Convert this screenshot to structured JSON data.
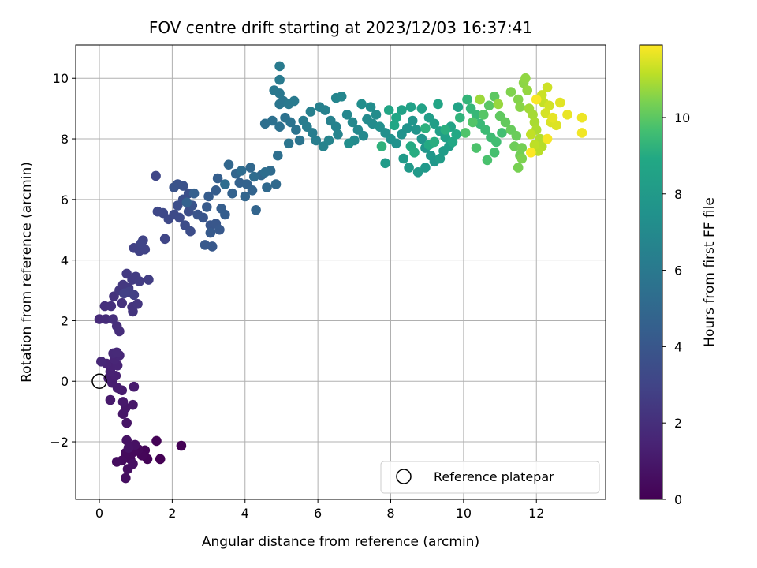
{
  "chart_data": {
    "type": "scatter",
    "title": "FOV centre drift starting at 2023/12/03 16:37:41",
    "xlabel": "Angular distance from reference (arcmin)",
    "ylabel": "Rotation from reference (arcmin)",
    "xlim": [
      -0.65,
      13.9
    ],
    "ylim": [
      -3.9,
      11.1
    ],
    "xticks": [
      0,
      2,
      4,
      6,
      8,
      10,
      12
    ],
    "yticks": [
      -2,
      0,
      2,
      4,
      6,
      8,
      10
    ],
    "ytick_labels": [
      "−2",
      "0",
      "2",
      "4",
      "6",
      "8",
      "10"
    ],
    "grid": true,
    "colormap": "viridis",
    "colorbar": {
      "label": "Hours from first FF file",
      "range": [
        0,
        11.9
      ],
      "ticks": [
        0,
        2,
        4,
        6,
        8,
        10
      ]
    },
    "legend": {
      "position": "lower-right",
      "entries": [
        "Reference platepar"
      ]
    },
    "reference_point": {
      "x": 0,
      "y": 0
    },
    "series": [
      {
        "value_keys": [
          "x",
          "y",
          "hours"
        ],
        "points": [
          [
            1.67,
            -2.57
          ],
          [
            2.25,
            -2.13
          ],
          [
            1.57,
            -1.97
          ],
          [
            1.32,
            -2.57
          ],
          [
            1.25,
            -2.28
          ],
          [
            1.17,
            -2.45
          ],
          [
            1.07,
            -2.25
          ],
          [
            0.95,
            -2.33
          ],
          [
            0.85,
            -2.57
          ],
          [
            0.72,
            -2.37
          ],
          [
            0.62,
            -2.62
          ],
          [
            0.48,
            -2.66
          ],
          [
            0.72,
            -3.2
          ],
          [
            0.78,
            -2.9
          ],
          [
            0.92,
            -2.73
          ],
          [
            0.98,
            -2.1
          ],
          [
            0.75,
            -1.95
          ],
          [
            0.8,
            -2.2
          ],
          [
            0.75,
            -1.38
          ],
          [
            0.65,
            -1.08
          ],
          [
            0.72,
            -0.88
          ],
          [
            0.92,
            -0.78
          ],
          [
            0.65,
            -0.68
          ],
          [
            0.3,
            -0.62
          ],
          [
            0.95,
            -0.18
          ],
          [
            0.62,
            -0.3
          ],
          [
            0.5,
            -0.22
          ],
          [
            0.35,
            -0.05
          ],
          [
            0.25,
            0.1
          ],
          [
            0.45,
            0.18
          ],
          [
            0.3,
            0.32
          ],
          [
            0.35,
            0.5
          ],
          [
            0.5,
            0.52
          ],
          [
            0.2,
            0.58
          ],
          [
            0.42,
            0.73
          ],
          [
            0.55,
            0.85
          ],
          [
            0.05,
            0.65
          ],
          [
            0.38,
            0.92
          ],
          [
            0.48,
            0.95
          ],
          [
            0.0,
            2.05
          ],
          [
            0.18,
            2.05
          ],
          [
            0.55,
            1.65
          ],
          [
            0.48,
            1.82
          ],
          [
            0.38,
            2.05
          ],
          [
            0.15,
            2.48
          ],
          [
            0.32,
            2.48
          ],
          [
            0.4,
            2.8
          ],
          [
            0.62,
            2.58
          ],
          [
            0.9,
            2.45
          ],
          [
            0.92,
            2.3
          ],
          [
            1.05,
            2.55
          ],
          [
            0.55,
            3.0
          ],
          [
            0.65,
            3.18
          ],
          [
            0.8,
            3.08
          ],
          [
            0.75,
            3.55
          ],
          [
            0.9,
            3.35
          ],
          [
            1.0,
            3.45
          ],
          [
            1.1,
            3.3
          ],
          [
            1.35,
            3.35
          ],
          [
            0.95,
            2.85
          ],
          [
            0.82,
            2.95
          ],
          [
            0.68,
            2.9
          ],
          [
            0.95,
            4.4
          ],
          [
            1.1,
            4.3
          ],
          [
            1.25,
            4.35
          ],
          [
            1.2,
            4.65
          ],
          [
            1.15,
            4.55
          ],
          [
            1.8,
            4.7
          ],
          [
            1.55,
            6.78
          ],
          [
            1.6,
            5.6
          ],
          [
            1.75,
            5.55
          ],
          [
            1.9,
            5.35
          ],
          [
            2.05,
            5.5
          ],
          [
            2.2,
            5.4
          ],
          [
            2.35,
            5.15
          ],
          [
            2.5,
            4.95
          ],
          [
            2.45,
            5.6
          ],
          [
            2.15,
            5.8
          ],
          [
            2.3,
            6.0
          ],
          [
            2.45,
            6.2
          ],
          [
            2.3,
            6.45
          ],
          [
            2.15,
            6.5
          ],
          [
            2.05,
            6.4
          ],
          [
            2.55,
            5.8
          ],
          [
            2.7,
            5.5
          ],
          [
            2.85,
            5.4
          ],
          [
            3.05,
            5.15
          ],
          [
            3.2,
            5.2
          ],
          [
            3.1,
            4.45
          ],
          [
            2.9,
            4.5
          ],
          [
            3.3,
            5.0
          ],
          [
            3.05,
            4.9
          ],
          [
            2.95,
            5.75
          ],
          [
            3.0,
            6.1
          ],
          [
            3.2,
            6.3
          ],
          [
            3.35,
            5.7
          ],
          [
            3.45,
            5.5
          ],
          [
            3.25,
            6.7
          ],
          [
            2.6,
            6.2
          ],
          [
            2.4,
            5.9
          ],
          [
            3.65,
            6.2
          ],
          [
            3.85,
            6.55
          ],
          [
            4.05,
            6.5
          ],
          [
            4.2,
            6.3
          ],
          [
            4.3,
            5.65
          ],
          [
            4.0,
            6.1
          ],
          [
            3.75,
            6.85
          ],
          [
            3.55,
            7.15
          ],
          [
            4.15,
            7.05
          ],
          [
            4.45,
            6.8
          ],
          [
            4.6,
            6.4
          ],
          [
            4.85,
            6.5
          ],
          [
            4.7,
            6.95
          ],
          [
            3.9,
            6.95
          ],
          [
            4.25,
            6.75
          ],
          [
            3.45,
            6.5
          ],
          [
            4.55,
            6.9
          ],
          [
            4.9,
            7.45
          ],
          [
            4.55,
            8.5
          ],
          [
            4.75,
            8.6
          ],
          [
            4.95,
            8.4
          ],
          [
            5.1,
            8.7
          ],
          [
            5.25,
            8.55
          ],
          [
            5.4,
            8.3
          ],
          [
            5.5,
            7.95
          ],
          [
            5.2,
            7.85
          ],
          [
            4.95,
            9.15
          ],
          [
            5.05,
            9.25
          ],
          [
            4.95,
            9.5
          ],
          [
            4.8,
            9.6
          ],
          [
            5.2,
            9.15
          ],
          [
            5.35,
            9.25
          ],
          [
            4.95,
            9.95
          ],
          [
            4.95,
            10.4
          ],
          [
            5.6,
            8.6
          ],
          [
            5.7,
            8.4
          ],
          [
            5.85,
            8.2
          ],
          [
            5.95,
            7.95
          ],
          [
            5.8,
            8.9
          ],
          [
            6.05,
            9.05
          ],
          [
            6.2,
            8.95
          ],
          [
            6.35,
            8.6
          ],
          [
            6.5,
            8.4
          ],
          [
            6.15,
            7.75
          ],
          [
            6.3,
            7.95
          ],
          [
            6.55,
            8.15
          ],
          [
            6.5,
            9.35
          ],
          [
            6.65,
            9.4
          ],
          [
            6.8,
            8.8
          ],
          [
            6.95,
            8.55
          ],
          [
            7.1,
            8.3
          ],
          [
            7.25,
            8.1
          ],
          [
            7.0,
            7.95
          ],
          [
            7.35,
            8.65
          ],
          [
            7.5,
            8.5
          ],
          [
            7.6,
            8.8
          ],
          [
            7.45,
            9.05
          ],
          [
            7.2,
            9.15
          ],
          [
            6.85,
            7.85
          ],
          [
            7.7,
            8.4
          ],
          [
            7.85,
            8.2
          ],
          [
            8.0,
            8.0
          ],
          [
            8.15,
            7.85
          ],
          [
            8.3,
            8.15
          ],
          [
            8.45,
            8.35
          ],
          [
            8.6,
            8.6
          ],
          [
            8.7,
            8.3
          ],
          [
            8.85,
            8.0
          ],
          [
            8.95,
            7.7
          ],
          [
            9.1,
            7.45
          ],
          [
            9.2,
            7.25
          ],
          [
            8.95,
            7.05
          ],
          [
            8.75,
            6.9
          ],
          [
            8.5,
            7.05
          ],
          [
            8.35,
            7.35
          ],
          [
            7.85,
            7.2
          ],
          [
            9.35,
            7.35
          ],
          [
            9.45,
            7.6
          ],
          [
            9.6,
            7.75
          ],
          [
            9.05,
            8.7
          ],
          [
            9.2,
            8.5
          ],
          [
            9.35,
            8.25
          ],
          [
            9.5,
            8.05
          ],
          [
            8.55,
            9.05
          ],
          [
            8.3,
            8.95
          ],
          [
            8.85,
            9.0
          ],
          [
            9.65,
            8.4
          ],
          [
            9.85,
            9.05
          ],
          [
            9.3,
            9.15
          ],
          [
            7.95,
            8.95
          ],
          [
            8.15,
            8.7
          ],
          [
            8.1,
            8.45
          ],
          [
            9.7,
            7.9
          ],
          [
            9.8,
            8.15
          ],
          [
            9.05,
            7.8
          ],
          [
            8.55,
            7.75
          ],
          [
            8.65,
            7.55
          ],
          [
            9.2,
            7.9
          ],
          [
            9.5,
            8.3
          ],
          [
            8.95,
            8.35
          ],
          [
            7.75,
            7.75
          ],
          [
            9.9,
            8.7
          ],
          [
            10.1,
            9.3
          ],
          [
            10.2,
            9.0
          ],
          [
            10.35,
            8.8
          ],
          [
            10.45,
            8.5
          ],
          [
            10.6,
            8.3
          ],
          [
            10.75,
            8.05
          ],
          [
            10.9,
            7.9
          ],
          [
            11.05,
            8.2
          ],
          [
            10.85,
            7.55
          ],
          [
            10.65,
            7.3
          ],
          [
            10.35,
            7.7
          ],
          [
            10.05,
            8.2
          ],
          [
            10.25,
            8.55
          ],
          [
            10.55,
            8.8
          ],
          [
            10.7,
            9.1
          ],
          [
            10.85,
            9.4
          ],
          [
            11.0,
            8.75
          ],
          [
            11.15,
            8.55
          ],
          [
            11.3,
            8.3
          ],
          [
            11.45,
            8.1
          ],
          [
            11.4,
            7.75
          ],
          [
            11.55,
            7.45
          ],
          [
            11.6,
            7.7
          ],
          [
            11.5,
            7.05
          ],
          [
            11.6,
            7.35
          ],
          [
            11.3,
            9.55
          ],
          [
            11.5,
            9.3
          ],
          [
            11.55,
            9.05
          ],
          [
            11.65,
            9.85
          ],
          [
            11.7,
            10.0
          ],
          [
            11.75,
            9.6
          ],
          [
            10.95,
            9.15
          ],
          [
            10.45,
            9.3
          ],
          [
            11.8,
            9.0
          ],
          [
            11.9,
            8.8
          ],
          [
            11.95,
            8.55
          ],
          [
            12.0,
            8.3
          ],
          [
            12.1,
            8.0
          ],
          [
            12.15,
            7.75
          ],
          [
            12.05,
            7.6
          ],
          [
            11.95,
            7.8
          ],
          [
            11.85,
            8.15
          ],
          [
            12.2,
            9.2
          ],
          [
            12.15,
            9.45
          ],
          [
            12.3,
            9.7
          ],
          [
            12.35,
            9.1
          ],
          [
            12.25,
            8.85
          ],
          [
            12.4,
            8.55
          ],
          [
            12.55,
            8.45
          ],
          [
            12.65,
            9.2
          ],
          [
            12.45,
            8.7
          ],
          [
            12.85,
            8.8
          ],
          [
            13.25,
            8.7
          ],
          [
            13.25,
            8.2
          ],
          [
            12.3,
            8.0
          ],
          [
            12.0,
            9.3
          ],
          [
            11.85,
            7.55
          ]
        ]
      }
    ]
  }
}
